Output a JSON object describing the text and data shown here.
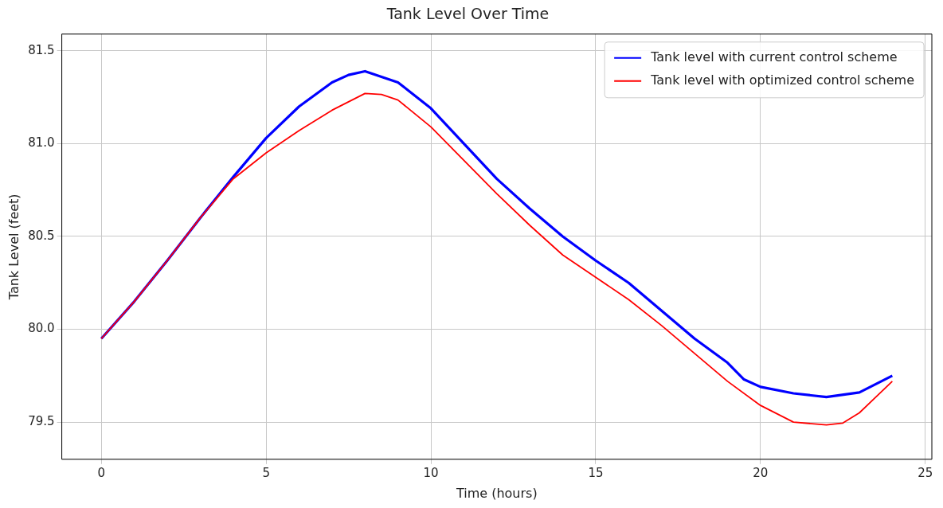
{
  "chart_data": {
    "type": "line",
    "title": "Tank Level Over Time",
    "xlabel": "Time (hours)",
    "ylabel": "Tank Level (feet)",
    "xlim": [
      -1.2,
      25.2
    ],
    "xticks": [
      0,
      5,
      10,
      15,
      20,
      25
    ],
    "ylim": [
      79.3,
      81.59
    ],
    "yticks": [
      79.5,
      {
        "value": 80,
        "label": "80.0"
      },
      80.5,
      {
        "value": 81,
        "label": "81.0"
      },
      81.5
    ],
    "grid": true,
    "legend": "top right",
    "marker": "none",
    "line_style": "solid",
    "series": [
      {
        "name": "Tank level with current control scheme",
        "color": "#0000ff",
        "x": [
          0,
          1,
          2,
          3,
          4,
          5,
          6,
          7,
          7.5,
          8,
          9,
          10,
          11,
          12,
          13,
          14,
          15,
          16,
          17,
          18,
          19,
          19.5,
          20,
          21,
          22,
          23,
          24
        ],
        "values": [
          79.95,
          80.15,
          80.37,
          80.6,
          80.82,
          81.03,
          81.2,
          81.33,
          81.37,
          81.39,
          81.33,
          81.19,
          81.0,
          80.81,
          80.65,
          80.5,
          80.37,
          80.25,
          80.1,
          79.95,
          79.82,
          79.73,
          79.69,
          79.655,
          79.635,
          79.66,
          79.75
        ]
      },
      {
        "name": "Tank level with optimized control scheme",
        "color": "#ff0000",
        "x": [
          0,
          1,
          2,
          3,
          4,
          5,
          6,
          7,
          8,
          8.5,
          9,
          10,
          11,
          12,
          13,
          14,
          15,
          16,
          17,
          18,
          19,
          20,
          21,
          22,
          22.5,
          23,
          24
        ],
        "values": [
          79.95,
          80.15,
          80.37,
          80.6,
          80.81,
          80.95,
          81.07,
          81.18,
          81.27,
          81.265,
          81.235,
          81.09,
          80.91,
          80.73,
          80.56,
          80.4,
          80.28,
          80.16,
          80.02,
          79.87,
          79.72,
          79.59,
          79.5,
          79.485,
          79.495,
          79.55,
          79.72
        ]
      }
    ]
  }
}
